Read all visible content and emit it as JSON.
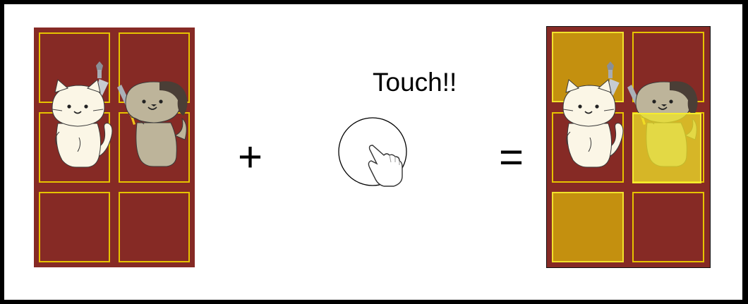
{
  "scene": {
    "plus_symbol": "+",
    "equals_symbol": "=",
    "touch_label": "Touch!!"
  },
  "boards": {
    "left": {
      "rows": 3,
      "cols": 2,
      "highlighted": []
    },
    "right": {
      "rows": 3,
      "cols": 2,
      "highlighted": [
        [
          0,
          0
        ],
        [
          2,
          0
        ],
        [
          1,
          1
        ]
      ]
    }
  },
  "colors": {
    "board": "#862a25",
    "tile_border": "#e6c300",
    "tile_highlight": "#c4900f",
    "touched_overlay": "#efe52a"
  },
  "icons": {
    "cat": "cat-knight-icon",
    "dog": "dog-knight-icon",
    "touch": "hand-pointer-icon"
  }
}
